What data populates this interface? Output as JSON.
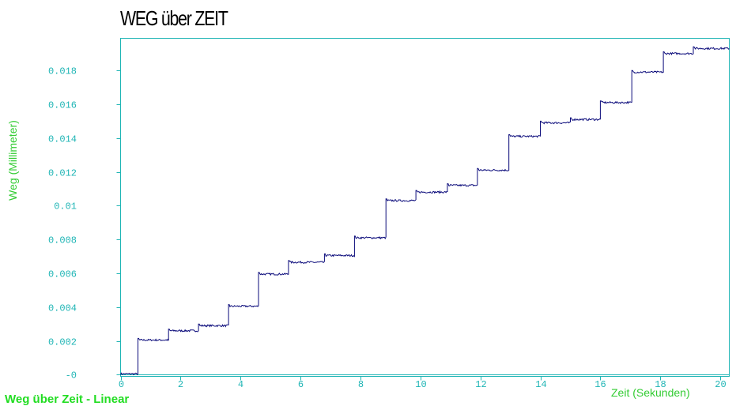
{
  "footer": {
    "label": "Weg über Zeit - Linear"
  },
  "colors": {
    "axis": "#1fb5b5",
    "label": "#33cc33",
    "tick": "#1fb5b5",
    "series": "#0a0a7a",
    "footer": "#22dd22"
  },
  "chart_data": {
    "type": "line",
    "title": "WEG über ZEIT",
    "xlabel": "Zeit (Sekunden)",
    "ylabel": "Weg (Millimeter)",
    "xlim": [
      0,
      20.3
    ],
    "ylim": [
      -0.0001,
      0.0199
    ],
    "grid": false,
    "x_ticks": [
      {
        "value": 0,
        "label": "0"
      },
      {
        "value": 2,
        "label": "2"
      },
      {
        "value": 4,
        "label": "4"
      },
      {
        "value": 6,
        "label": "6"
      },
      {
        "value": 8,
        "label": "8"
      },
      {
        "value": 10,
        "label": "10"
      },
      {
        "value": 12,
        "label": "12"
      },
      {
        "value": 14,
        "label": "14"
      },
      {
        "value": 16,
        "label": "16"
      },
      {
        "value": 18,
        "label": "18"
      },
      {
        "value": 20,
        "label": "20"
      }
    ],
    "y_ticks": [
      {
        "value": 0,
        "label": "-0"
      },
      {
        "value": 0.002,
        "label": "0.002"
      },
      {
        "value": 0.004,
        "label": "0.004"
      },
      {
        "value": 0.006,
        "label": "0.006"
      },
      {
        "value": 0.008,
        "label": "0.008"
      },
      {
        "value": 0.01,
        "label": "0.01"
      },
      {
        "value": 0.012,
        "label": "0.012"
      },
      {
        "value": 0.014,
        "label": "0.014"
      },
      {
        "value": 0.016,
        "label": "0.016"
      },
      {
        "value": 0.018,
        "label": "0.018"
      }
    ],
    "series": [
      {
        "steps": [
          {
            "x_start": 0.0,
            "x_end": 0.58,
            "y": 5e-05
          },
          {
            "x_start": 0.58,
            "x_end": 1.6,
            "y": 0.00205
          },
          {
            "x_start": 1.6,
            "x_end": 2.6,
            "y": 0.0026
          },
          {
            "x_start": 2.6,
            "x_end": 3.6,
            "y": 0.0029
          },
          {
            "x_start": 3.6,
            "x_end": 4.6,
            "y": 0.00405
          },
          {
            "x_start": 4.6,
            "x_end": 5.6,
            "y": 0.00595
          },
          {
            "x_start": 5.6,
            "x_end": 6.8,
            "y": 0.00665
          },
          {
            "x_start": 6.8,
            "x_end": 7.8,
            "y": 0.00705
          },
          {
            "x_start": 7.8,
            "x_end": 8.85,
            "y": 0.0081
          },
          {
            "x_start": 8.85,
            "x_end": 9.85,
            "y": 0.0103
          },
          {
            "x_start": 9.85,
            "x_end": 10.9,
            "y": 0.0108
          },
          {
            "x_start": 10.9,
            "x_end": 11.9,
            "y": 0.0112
          },
          {
            "x_start": 11.9,
            "x_end": 12.95,
            "y": 0.0121
          },
          {
            "x_start": 12.95,
            "x_end": 14.0,
            "y": 0.0141
          },
          {
            "x_start": 14.0,
            "x_end": 15.0,
            "y": 0.0149
          },
          {
            "x_start": 15.0,
            "x_end": 16.0,
            "y": 0.0151
          },
          {
            "x_start": 16.0,
            "x_end": 17.05,
            "y": 0.0161
          },
          {
            "x_start": 17.05,
            "x_end": 18.1,
            "y": 0.0179
          },
          {
            "x_start": 18.1,
            "x_end": 19.1,
            "y": 0.019
          },
          {
            "x_start": 19.1,
            "x_end": 20.3,
            "y": 0.0193
          }
        ]
      }
    ]
  }
}
